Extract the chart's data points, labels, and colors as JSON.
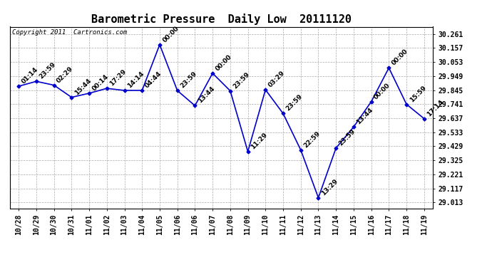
{
  "title": "Barometric Pressure  Daily Low  20111120",
  "copyright": "Copyright 2011  Cartronics.com",
  "line_color": "#0000cc",
  "marker_color": "#0000cc",
  "bg_color": "#ffffff",
  "grid_color": "#aaaaaa",
  "points": [
    {
      "x": 0,
      "date": "10/28",
      "time": "01:14",
      "value": 29.874
    },
    {
      "x": 1,
      "date": "10/29",
      "time": "23:59",
      "value": 29.91
    },
    {
      "x": 2,
      "date": "10/30",
      "time": "02:29",
      "value": 29.882
    },
    {
      "x": 3,
      "date": "10/31",
      "time": "15:44",
      "value": 29.792
    },
    {
      "x": 4,
      "date": "11/01",
      "time": "00:14",
      "value": 29.822
    },
    {
      "x": 5,
      "date": "11/02",
      "time": "17:29",
      "value": 29.858
    },
    {
      "x": 6,
      "date": "11/03",
      "time": "14:14",
      "value": 29.843
    },
    {
      "x": 7,
      "date": "11/04",
      "time": "04:44",
      "value": 29.843
    },
    {
      "x": 8,
      "date": "11/05",
      "time": "00:00",
      "value": 30.182
    },
    {
      "x": 9,
      "date": "11/06",
      "time": "23:59",
      "value": 29.842
    },
    {
      "x": 10,
      "date": "11/06",
      "time": "13:44",
      "value": 29.73
    },
    {
      "x": 11,
      "date": "11/07",
      "time": "00:00",
      "value": 29.97
    },
    {
      "x": 12,
      "date": "11/08",
      "time": "23:59",
      "value": 29.84
    },
    {
      "x": 13,
      "date": "11/09",
      "time": "11:29",
      "value": 29.39
    },
    {
      "x": 14,
      "date": "11/10",
      "time": "03:29",
      "value": 29.848
    },
    {
      "x": 15,
      "date": "11/11",
      "time": "23:59",
      "value": 29.672
    },
    {
      "x": 16,
      "date": "11/12",
      "time": "22:59",
      "value": 29.402
    },
    {
      "x": 17,
      "date": "11/13",
      "time": "13:29",
      "value": 29.048
    },
    {
      "x": 18,
      "date": "11/14",
      "time": "23:59",
      "value": 29.416
    },
    {
      "x": 19,
      "date": "11/15",
      "time": "13:44",
      "value": 29.572
    },
    {
      "x": 20,
      "date": "11/16",
      "time": "00:00",
      "value": 29.76
    },
    {
      "x": 21,
      "date": "11/17",
      "time": "00:00",
      "value": 30.01
    },
    {
      "x": 22,
      "date": "11/18",
      "time": "15:59",
      "value": 29.74
    },
    {
      "x": 23,
      "date": "11/19",
      "time": "17:14",
      "value": 29.634
    }
  ],
  "yticks": [
    29.013,
    29.117,
    29.221,
    29.325,
    29.429,
    29.533,
    29.637,
    29.741,
    29.845,
    29.949,
    30.053,
    30.157,
    30.261
  ],
  "ylim": [
    28.97,
    30.315
  ],
  "xlim": [
    -0.5,
    23.5
  ],
  "xtick_labels": [
    "10/28",
    "10/29",
    "10/30",
    "10/31",
    "11/01",
    "11/02",
    "11/03",
    "11/04",
    "11/05",
    "11/06",
    "11/06",
    "11/07",
    "11/08",
    "11/09",
    "11/10",
    "11/11",
    "11/12",
    "11/13",
    "11/14",
    "11/15",
    "11/16",
    "11/17",
    "11/18",
    "11/19"
  ],
  "annotation_fontsize": 6.5,
  "title_fontsize": 11,
  "copyright_fontsize": 6.5,
  "tick_fontsize": 7.0
}
